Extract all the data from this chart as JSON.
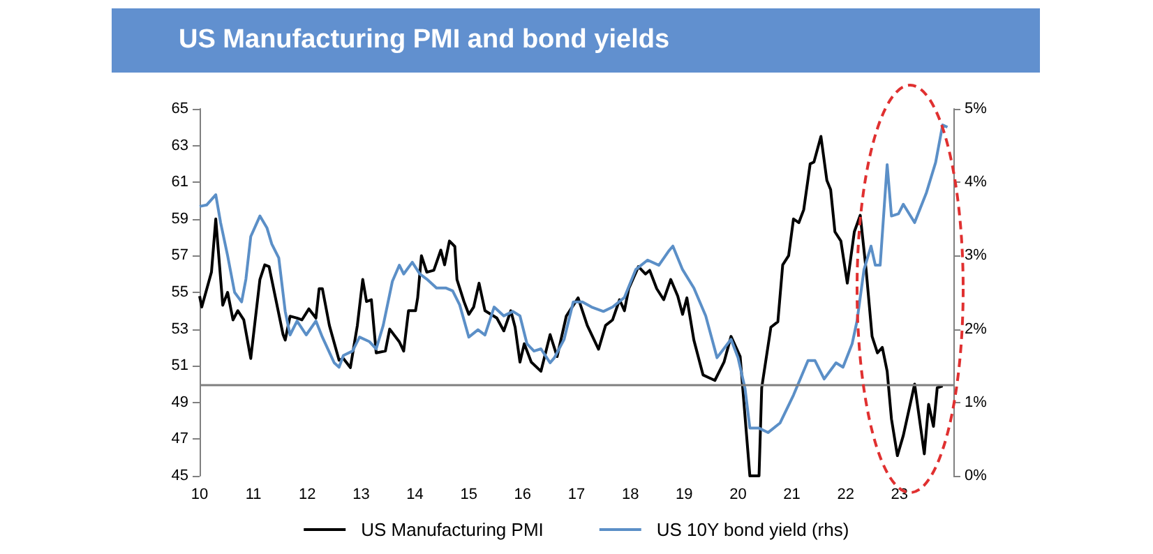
{
  "chart_data": {
    "type": "line",
    "title": "US Manufacturing PMI and bond yields",
    "xlim": [
      2010,
      2024
    ],
    "xticks": [
      {
        "value": 2010,
        "label": "10"
      },
      {
        "value": 2011,
        "label": "11"
      },
      {
        "value": 2012,
        "label": "12"
      },
      {
        "value": 2013,
        "label": "13"
      },
      {
        "value": 2014,
        "label": "14"
      },
      {
        "value": 2015,
        "label": "15"
      },
      {
        "value": 2016,
        "label": "16"
      },
      {
        "value": 2017,
        "label": "17"
      },
      {
        "value": 2018,
        "label": "18"
      },
      {
        "value": 2019,
        "label": "19"
      },
      {
        "value": 2020,
        "label": "20"
      },
      {
        "value": 2021,
        "label": "21"
      },
      {
        "value": 2022,
        "label": "22"
      },
      {
        "value": 2023,
        "label": "23"
      }
    ],
    "ylim": [
      45,
      65
    ],
    "yticks": [
      45,
      47,
      49,
      51,
      53,
      55,
      57,
      59,
      61,
      63,
      65
    ],
    "y2lim": [
      0,
      5
    ],
    "y2ticks": [
      {
        "value": 0,
        "label": "0%"
      },
      {
        "value": 1,
        "label": "1%"
      },
      {
        "value": 2,
        "label": "2%"
      },
      {
        "value": 3,
        "label": "3%"
      },
      {
        "value": 4,
        "label": "4%"
      },
      {
        "value": 5,
        "label": "5%"
      }
    ],
    "ref_lines": [
      {
        "axis": "y",
        "value": 50,
        "color": "#808080"
      }
    ],
    "legend": "bottom",
    "grid": false,
    "marker": "none",
    "line_style": "solid",
    "series": [
      {
        "name": "US Manufacturing PMI",
        "color": "#000000",
        "x": [
          2010.0,
          2010.04,
          2010.22,
          2010.3,
          2010.43,
          2010.52,
          2010.62,
          2010.71,
          2010.82,
          2010.95,
          2011.12,
          2011.21,
          2011.29,
          2011.55,
          2011.59,
          2011.68,
          2011.81,
          2011.9,
          2012.03,
          2012.16,
          2012.22,
          2012.28,
          2012.41,
          2012.59,
          2012.67,
          2012.8,
          2012.93,
          2013.03,
          2013.1,
          2013.19,
          2013.28,
          2013.45,
          2013.53,
          2013.71,
          2013.79,
          2013.88,
          2014.01,
          2014.05,
          2014.12,
          2014.22,
          2014.35,
          2014.48,
          2014.55,
          2014.64,
          2014.74,
          2014.78,
          2014.91,
          2015.0,
          2015.09,
          2015.19,
          2015.3,
          2015.52,
          2015.65,
          2015.78,
          2015.86,
          2015.95,
          2016.03,
          2016.16,
          2016.34,
          2016.51,
          2016.64,
          2016.81,
          2017.03,
          2017.2,
          2017.41,
          2017.54,
          2017.67,
          2017.8,
          2017.89,
          2017.97,
          2018.15,
          2018.28,
          2018.36,
          2018.49,
          2018.62,
          2018.75,
          2018.88,
          2018.97,
          2019.05,
          2019.18,
          2019.35,
          2019.57,
          2019.74,
          2019.87,
          2020.04,
          2020.22,
          2020.39,
          2020.44,
          2020.61,
          2020.74,
          2020.83,
          2020.94,
          2021.03,
          2021.13,
          2021.22,
          2021.34,
          2021.41,
          2021.54,
          2021.65,
          2021.72,
          2021.8,
          2021.91,
          2022.03,
          2022.16,
          2022.27,
          2022.38,
          2022.49,
          2022.59,
          2022.68,
          2022.77,
          2022.85,
          2022.96,
          2023.07,
          2023.28,
          2023.46,
          2023.54,
          2023.63,
          2023.7,
          2023.8
        ],
        "values": [
          54.8,
          54.2,
          56.1,
          59.0,
          54.3,
          55.0,
          53.5,
          54.0,
          53.5,
          51.4,
          55.7,
          56.5,
          56.4,
          52.7,
          52.4,
          53.7,
          53.6,
          53.5,
          54.1,
          53.6,
          55.2,
          55.2,
          53.2,
          51.3,
          51.4,
          50.9,
          53.2,
          55.7,
          54.5,
          54.6,
          51.7,
          51.8,
          53.0,
          52.3,
          51.8,
          54.0,
          54.0,
          54.7,
          57.0,
          56.1,
          56.2,
          57.3,
          56.5,
          57.8,
          57.5,
          55.7,
          54.5,
          53.8,
          54.2,
          55.5,
          54.0,
          53.6,
          52.9,
          54.0,
          53.1,
          51.2,
          52.2,
          51.2,
          50.7,
          52.7,
          51.5,
          53.7,
          54.7,
          53.2,
          51.9,
          53.2,
          53.5,
          54.6,
          54.0,
          55.2,
          56.4,
          56.0,
          56.2,
          55.2,
          54.6,
          55.7,
          54.8,
          53.8,
          54.7,
          52.4,
          50.5,
          50.2,
          51.2,
          52.6,
          51.5,
          45,
          45,
          49.8,
          53.1,
          53.4,
          56.5,
          57.0,
          59.0,
          58.8,
          59.5,
          62.0,
          62.1,
          63.5,
          61.1,
          60.6,
          58.3,
          57.8,
          55.5,
          58.3,
          59.2,
          56.2,
          52.6,
          51.7,
          52.0,
          50.7,
          48.1,
          46.1,
          47.2,
          50.0,
          46.2,
          48.9,
          47.7,
          49.8,
          49.9
        ]
      },
      {
        "name": "US 10Y bond yield (rhs)",
        "color": "#5b8fc7",
        "axis": "y2",
        "x": [
          2010.0,
          2010.13,
          2010.3,
          2010.39,
          2010.52,
          2010.65,
          2010.78,
          2010.86,
          2010.95,
          2011.12,
          2011.25,
          2011.34,
          2011.47,
          2011.59,
          2011.68,
          2011.81,
          2011.98,
          2012.16,
          2012.28,
          2012.5,
          2012.59,
          2012.67,
          2012.84,
          2012.97,
          2013.15,
          2013.28,
          2013.41,
          2013.58,
          2013.71,
          2013.79,
          2013.95,
          2014.09,
          2014.22,
          2014.4,
          2014.57,
          2014.7,
          2014.83,
          2015.0,
          2015.17,
          2015.3,
          2015.47,
          2015.65,
          2015.82,
          2015.95,
          2016.08,
          2016.21,
          2016.34,
          2016.51,
          2016.59,
          2016.77,
          2016.94,
          2017.11,
          2017.28,
          2017.5,
          2017.67,
          2017.89,
          2018.1,
          2018.32,
          2018.53,
          2018.71,
          2018.79,
          2018.97,
          2019.18,
          2019.4,
          2019.61,
          2019.87,
          2020.0,
          2020.13,
          2020.22,
          2020.39,
          2020.56,
          2020.78,
          2021.03,
          2021.3,
          2021.43,
          2021.6,
          2021.82,
          2021.95,
          2022.12,
          2022.21,
          2022.34,
          2022.47,
          2022.55,
          2022.64,
          2022.77,
          2022.85,
          2022.98,
          2023.07,
          2023.28,
          2023.5,
          2023.67,
          2023.8,
          2023.89
        ],
        "values": [
          3.67,
          3.69,
          3.83,
          3.45,
          3.0,
          2.5,
          2.37,
          2.68,
          3.26,
          3.54,
          3.38,
          3.16,
          2.97,
          2.24,
          1.92,
          2.11,
          1.92,
          2.11,
          1.89,
          1.54,
          1.48,
          1.64,
          1.7,
          1.89,
          1.83,
          1.73,
          2.05,
          2.65,
          2.87,
          2.75,
          2.91,
          2.75,
          2.68,
          2.56,
          2.56,
          2.52,
          2.33,
          1.89,
          1.99,
          1.92,
          2.3,
          2.18,
          2.24,
          2.18,
          1.8,
          1.7,
          1.73,
          1.54,
          1.61,
          1.86,
          2.37,
          2.37,
          2.3,
          2.24,
          2.3,
          2.43,
          2.81,
          2.94,
          2.87,
          3.06,
          3.13,
          2.81,
          2.56,
          2.18,
          1.61,
          1.86,
          1.61,
          1.19,
          0.65,
          0.65,
          0.59,
          0.72,
          1.1,
          1.57,
          1.57,
          1.32,
          1.54,
          1.48,
          1.8,
          2.11,
          2.81,
          3.13,
          2.87,
          2.87,
          4.24,
          3.54,
          3.57,
          3.7,
          3.45,
          3.86,
          4.27,
          4.78,
          4.75
        ]
      }
    ]
  }
}
